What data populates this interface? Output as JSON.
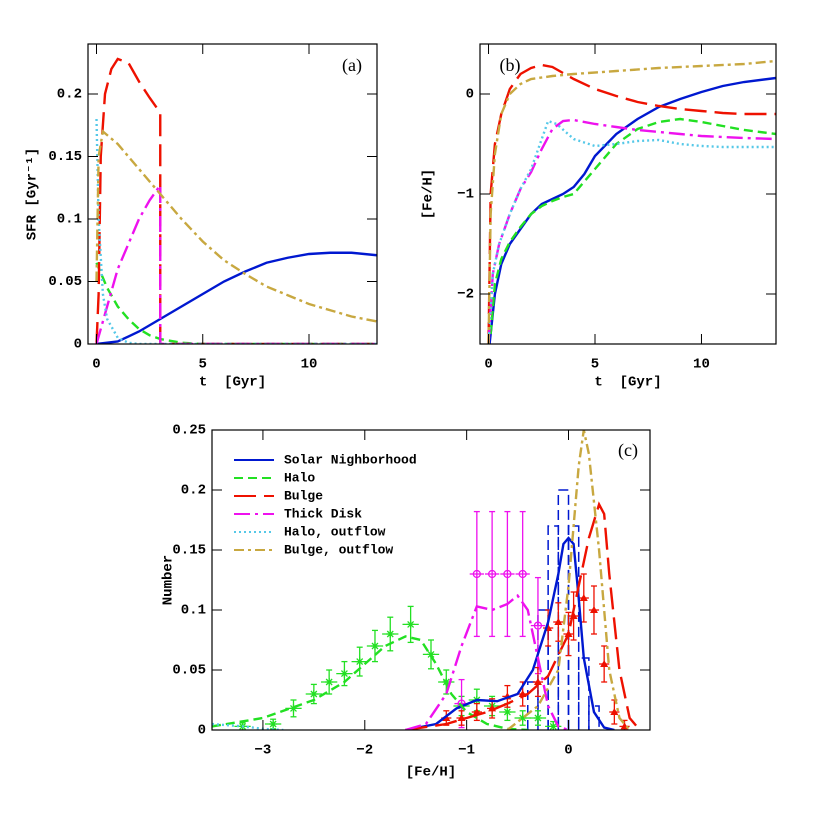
{
  "chart_data": [
    {
      "type": "line",
      "panel_label": "(a)",
      "xlabel": "t  [Gyr]",
      "ylabel": "SFR [Gyr⁻¹]",
      "xlim": [
        -0.4,
        13.2
      ],
      "ylim": [
        0,
        0.24
      ],
      "xticks": [
        0,
        5,
        10
      ],
      "yticks": [
        0,
        0.05,
        0.1,
        0.15,
        0.2
      ],
      "series": [
        {
          "color": "#0018d0",
          "dash": "solid",
          "x": [
            0,
            1,
            2,
            3,
            4,
            5,
            6,
            7,
            8,
            9,
            10,
            11,
            12,
            13.2
          ],
          "values": [
            0,
            0.002,
            0.01,
            0.02,
            0.03,
            0.04,
            0.05,
            0.058,
            0.065,
            0.069,
            0.072,
            0.073,
            0.073,
            0.071
          ]
        },
        {
          "color": "#22e022",
          "dash": "dashed",
          "x": [
            0,
            0.5,
            1,
            1.5,
            2,
            2.5,
            3,
            4,
            5,
            13.2
          ],
          "values": [
            0.065,
            0.045,
            0.03,
            0.02,
            0.012,
            0.007,
            0.004,
            0.001,
            0,
            0
          ]
        },
        {
          "color": "#ee1100",
          "dash": "longdash",
          "x": [
            0,
            0.1,
            0.2,
            0.4,
            0.7,
            1,
            1.5,
            2,
            2.5,
            3,
            3,
            13.2
          ],
          "values": [
            0,
            0.04,
            0.15,
            0.2,
            0.22,
            0.228,
            0.225,
            0.21,
            0.197,
            0.185,
            0,
            0
          ]
        },
        {
          "color": "#ee11ee",
          "dash": "dashdot",
          "x": [
            0,
            0.5,
            1,
            1.5,
            2,
            2.5,
            3,
            3,
            13.2
          ],
          "values": [
            0,
            0.03,
            0.06,
            0.08,
            0.1,
            0.115,
            0.127,
            0,
            0
          ]
        },
        {
          "color": "#55c8e8",
          "dash": "dotted",
          "x": [
            0,
            0.1,
            0.3,
            0.5,
            1,
            1.5,
            2,
            13.2
          ],
          "values": [
            0.18,
            0.1,
            0.04,
            0.02,
            0.005,
            0.001,
            0,
            0
          ]
        },
        {
          "color": "#c8a840",
          "dash": "dashdotlong",
          "x": [
            0,
            0.1,
            0.3,
            1,
            2,
            3,
            4,
            5,
            6,
            7,
            8,
            9,
            10,
            11,
            12,
            13.2
          ],
          "values": [
            0.05,
            0.15,
            0.17,
            0.16,
            0.14,
            0.12,
            0.1,
            0.082,
            0.067,
            0.056,
            0.046,
            0.039,
            0.032,
            0.027,
            0.022,
            0.018
          ]
        }
      ]
    },
    {
      "type": "line",
      "panel_label": "(b)",
      "xlabel": "t  [Gyr]",
      "ylabel": "[Fe/H]",
      "xlim": [
        -0.4,
        13.5
      ],
      "ylim": [
        -2.5,
        0.5
      ],
      "xticks": [
        0,
        5,
        10
      ],
      "yticks": [
        {
          "value": -2,
          "label": "−2"
        },
        {
          "value": -1,
          "label": "−1"
        },
        0
      ],
      "series": [
        {
          "color": "#0018d0",
          "dash": "solid",
          "x": [
            0.05,
            0.3,
            0.6,
            1,
            1.5,
            2,
            2.5,
            3,
            3.5,
            4,
            4.5,
            5,
            6,
            7,
            8,
            9,
            10,
            11,
            12,
            13.5
          ],
          "values": [
            -2.5,
            -2.0,
            -1.7,
            -1.5,
            -1.35,
            -1.2,
            -1.1,
            -1.05,
            -1.0,
            -0.93,
            -0.8,
            -0.62,
            -0.4,
            -0.25,
            -0.13,
            -0.05,
            0.02,
            0.08,
            0.12,
            0.16
          ]
        },
        {
          "color": "#22e022",
          "dash": "dashed",
          "x": [
            0.1,
            0.3,
            0.6,
            1,
            1.5,
            2,
            2.5,
            3,
            3.5,
            4,
            5,
            6,
            7,
            8,
            9,
            10,
            11,
            12,
            13.5
          ],
          "values": [
            -2.4,
            -1.9,
            -1.65,
            -1.48,
            -1.33,
            -1.2,
            -1.12,
            -1.07,
            -1.03,
            -1.0,
            -0.75,
            -0.5,
            -0.35,
            -0.28,
            -0.25,
            -0.28,
            -0.32,
            -0.36,
            -0.4
          ]
        },
        {
          "color": "#ee1100",
          "dash": "longdash",
          "x": [
            0,
            0.1,
            0.3,
            0.6,
            1,
            1.5,
            2,
            2.5,
            3,
            4,
            5,
            6,
            7,
            8,
            9,
            10,
            11,
            12,
            13.5
          ],
          "values": [
            -2.5,
            -1.0,
            -0.5,
            -0.2,
            0.05,
            0.2,
            0.26,
            0.29,
            0.27,
            0.15,
            0.05,
            -0.02,
            -0.08,
            -0.12,
            -0.15,
            -0.17,
            -0.19,
            -0.2,
            -0.2
          ]
        },
        {
          "color": "#ee11ee",
          "dash": "dashdot",
          "x": [
            0,
            0.2,
            0.5,
            1,
            1.5,
            2,
            2.5,
            3,
            3.5,
            4,
            5,
            6,
            7,
            8,
            9,
            10,
            11,
            12,
            13.5
          ],
          "values": [
            -2.5,
            -1.8,
            -1.5,
            -1.2,
            -0.95,
            -0.78,
            -0.55,
            -0.35,
            -0.27,
            -0.26,
            -0.3,
            -0.33,
            -0.36,
            -0.38,
            -0.4,
            -0.42,
            -0.43,
            -0.44,
            -0.45
          ]
        },
        {
          "color": "#55c8e8",
          "dash": "dotted",
          "x": [
            0,
            0.2,
            0.5,
            1,
            1.5,
            2,
            2.5,
            2.8,
            3.2,
            4,
            5,
            6,
            7,
            8,
            9,
            10,
            11,
            12,
            13.5
          ],
          "values": [
            -2.5,
            -1.8,
            -1.5,
            -1.2,
            -0.95,
            -0.75,
            -0.45,
            -0.27,
            -0.3,
            -0.45,
            -0.52,
            -0.5,
            -0.47,
            -0.46,
            -0.5,
            -0.52,
            -0.53,
            -0.53,
            -0.53
          ]
        },
        {
          "color": "#c8a840",
          "dash": "dashdotlong",
          "x": [
            0,
            0.1,
            0.3,
            0.6,
            1,
            1.5,
            2,
            3,
            4,
            6,
            8,
            10,
            12,
            13.5
          ],
          "values": [
            -2.5,
            -1.2,
            -0.6,
            -0.2,
            0.0,
            0.1,
            0.15,
            0.18,
            0.2,
            0.23,
            0.26,
            0.28,
            0.3,
            0.33
          ]
        }
      ]
    },
    {
      "type": "line",
      "panel_label": "(c)",
      "xlabel": "[Fe/H]",
      "ylabel": "Number",
      "xlim": [
        -3.5,
        0.8
      ],
      "ylim": [
        0,
        0.25
      ],
      "xticks": [
        {
          "value": -3,
          "label": "−3"
        },
        {
          "value": -2,
          "label": "−2"
        },
        {
          "value": -1,
          "label": "−1"
        },
        0
      ],
      "yticks": [
        0,
        0.05,
        0.1,
        0.15,
        0.2,
        0.25
      ],
      "series": [
        {
          "name": "Solar Nighborhood",
          "color": "#0018d0",
          "dash": "solid",
          "x": [
            -1.6,
            -1.3,
            -1.1,
            -0.9,
            -0.7,
            -0.5,
            -0.35,
            -0.2,
            -0.1,
            -0.05,
            0.0,
            0.05,
            0.1,
            0.15,
            0.25,
            0.35,
            0.45
          ],
          "values": [
            0,
            0.005,
            0.018,
            0.025,
            0.024,
            0.03,
            0.05,
            0.09,
            0.13,
            0.155,
            0.16,
            0.155,
            0.11,
            0.06,
            0.015,
            0.002,
            0
          ]
        },
        {
          "name": "Halo",
          "color": "#22e022",
          "dash": "dashed",
          "x": [
            -3.5,
            -3.0,
            -2.5,
            -2.2,
            -2.0,
            -1.8,
            -1.6,
            -1.45,
            -1.3,
            -1.15,
            -1.0,
            -0.8,
            -0.6,
            -0.4
          ],
          "values": [
            0.003,
            0.01,
            0.025,
            0.04,
            0.055,
            0.07,
            0.078,
            0.075,
            0.055,
            0.03,
            0.015,
            0.005,
            0.001,
            0
          ]
        },
        {
          "name": "Bulge",
          "color": "#ee1100",
          "dash": "longdash",
          "x": [
            -1.6,
            -1.2,
            -1.0,
            -0.8,
            -0.6,
            -0.4,
            -0.2,
            0,
            0.1,
            0.2,
            0.3,
            0.35,
            0.4,
            0.5,
            0.6,
            0.7
          ],
          "values": [
            0,
            0.005,
            0.01,
            0.015,
            0.022,
            0.03,
            0.045,
            0.08,
            0.12,
            0.16,
            0.188,
            0.18,
            0.13,
            0.05,
            0.01,
            0
          ]
        },
        {
          "name": "Thick Disk",
          "color": "#ee11ee",
          "dash": "dashdot",
          "x": [
            -1.6,
            -1.4,
            -1.2,
            -1.05,
            -0.9,
            -0.75,
            -0.6,
            -0.5,
            -0.4,
            -0.3,
            -0.2,
            -0.1,
            0
          ],
          "values": [
            0,
            0.005,
            0.03,
            0.07,
            0.103,
            0.1,
            0.105,
            0.112,
            0.1,
            0.06,
            0.02,
            0.003,
            0
          ]
        },
        {
          "name": "Halo, outflow",
          "color": "#55c8e8",
          "dash": "dotted",
          "x": [
            -3.5,
            -3.2,
            -3.0,
            -2.8
          ],
          "values": [
            0.005,
            0.003,
            0.001,
            0
          ]
        },
        {
          "name": "Bulge, outflow",
          "color": "#c8a840",
          "dash": "dashdotlong",
          "x": [
            -0.6,
            -0.3,
            -0.1,
            0.0,
            0.1,
            0.15,
            0.2,
            0.3,
            0.4,
            0.5,
            0.6
          ],
          "values": [
            0,
            0.02,
            0.05,
            0.12,
            0.22,
            0.25,
            0.23,
            0.15,
            0.05,
            0.01,
            0
          ]
        }
      ],
      "histogram": {
        "color": "#0018d0",
        "bins": [
          -0.4,
          -0.3,
          -0.2,
          -0.1,
          0,
          0.1,
          0.2,
          0.3
        ],
        "counts": [
          0.04,
          0.1,
          0.17,
          0.2,
          0.17,
          0.06,
          0.02
        ]
      },
      "errorbars": [
        {
          "color": "#22e022",
          "marker": "star",
          "xerr": 0.08,
          "x": [
            -3.2,
            -2.9,
            -2.7,
            -2.5,
            -2.35,
            -2.2,
            -2.05,
            -1.9,
            -1.75,
            -1.55,
            -1.35,
            -1.2,
            -1.05,
            -0.9,
            -0.75,
            -0.6,
            -0.45,
            -0.3,
            -0.15
          ],
          "values": [
            0.003,
            0.005,
            0.018,
            0.03,
            0.04,
            0.047,
            0.057,
            0.07,
            0.08,
            0.088,
            0.063,
            0.04,
            0.02,
            0.025,
            0.02,
            0.015,
            0.01,
            0.01,
            0.003
          ],
          "yerr": [
            0.003,
            0.004,
            0.007,
            0.008,
            0.01,
            0.01,
            0.012,
            0.013,
            0.014,
            0.015,
            0.012,
            0.01,
            0.008,
            0.009,
            0.008,
            0.007,
            0.006,
            0.006,
            0.004
          ]
        },
        {
          "color": "#ee11ee",
          "marker": "circle",
          "xerr": 0.07,
          "x": [
            -1.05,
            -0.9,
            -0.75,
            -0.6,
            -0.45,
            -0.3
          ],
          "values": [
            0.022,
            0.13,
            0.13,
            0.13,
            0.13,
            0.087
          ],
          "yerr": [
            0.02,
            0.052,
            0.052,
            0.052,
            0.052,
            0.04
          ]
        },
        {
          "color": "#ee1100",
          "marker": "triangle",
          "xerr": 0.05,
          "x": [
            -1.2,
            -1.05,
            -0.9,
            -0.75,
            -0.6,
            -0.45,
            -0.3,
            -0.2,
            -0.1,
            0.0,
            0.05,
            0.15,
            0.25,
            0.35,
            0.45,
            0.55
          ],
          "values": [
            0.01,
            0.01,
            0.015,
            0.018,
            0.028,
            0.03,
            0.04,
            0.085,
            0.09,
            0.08,
            0.095,
            0.11,
            0.1,
            0.055,
            0.015,
            0.003
          ],
          "yerr": [
            0.006,
            0.006,
            0.007,
            0.008,
            0.009,
            0.01,
            0.012,
            0.015,
            0.016,
            0.018,
            0.02,
            0.02,
            0.02,
            0.015,
            0.01,
            0.005
          ]
        }
      ]
    }
  ]
}
